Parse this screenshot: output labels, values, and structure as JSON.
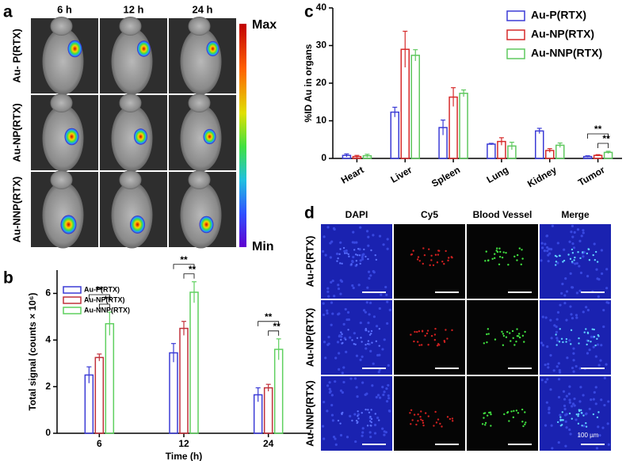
{
  "panel_a": {
    "label": "a",
    "columns": [
      "6 h",
      "12 h",
      "24 h"
    ],
    "rows": [
      "Au- P(RTX)",
      "Au-NP(RTX)",
      "Au-NNP(RTX)"
    ],
    "scale_max": "Max",
    "scale_min": "Min"
  },
  "panel_d": {
    "label": "d",
    "columns": [
      "DAPI",
      "Cy5",
      "Blood Vessel",
      "Merge"
    ],
    "rows": [
      "Au-P(RTX)",
      "Au-NP(RTX)",
      "Au-NNP(RTX)"
    ],
    "scale_bar": "100 µm"
  },
  "chart_data": [
    {
      "type": "bar",
      "panel": "b",
      "y_label": "Total signal (counts × 10⁶)",
      "x_label": "Time (h)",
      "categories": [
        "6",
        "12",
        "24"
      ],
      "series": [
        {
          "name": "Au-P(RTX)",
          "color": "#3b3bd6",
          "values": [
            2.5,
            3.45,
            1.65
          ],
          "errors": [
            0.35,
            0.4,
            0.3
          ]
        },
        {
          "name": "Au-NP(RTX)",
          "color": "#c0303a",
          "values": [
            3.25,
            4.5,
            1.95
          ],
          "errors": [
            0.15,
            0.3,
            0.15
          ]
        },
        {
          "name": "Au-NNP(RTX)",
          "color": "#5fd05f",
          "values": [
            4.7,
            6.05,
            3.6
          ],
          "errors": [
            0.5,
            0.45,
            0.45
          ]
        }
      ],
      "ylim": [
        0,
        7
      ],
      "yticks": [
        0,
        2,
        4,
        6
      ],
      "legend": "upper left",
      "annotations": [
        "**",
        "**",
        "**",
        "**",
        "**",
        "**"
      ]
    },
    {
      "type": "bar",
      "panel": "c",
      "y_label": "%ID Au in organs",
      "categories": [
        "Heart",
        "Liver",
        "Spleen",
        "Lung",
        "Kidney",
        "Tumor"
      ],
      "series": [
        {
          "name": "Au-P(RTX)",
          "color": "#3b3bd6",
          "values": [
            0.8,
            12.3,
            8.2,
            3.8,
            7.3,
            0.5
          ],
          "errors": [
            0.4,
            1.3,
            2.0,
            0.2,
            0.7,
            0.2
          ]
        },
        {
          "name": "Au-NP(RTX)",
          "color": "#d62a2a",
          "values": [
            0.5,
            29,
            16.3,
            4.5,
            2.1,
            0.8
          ],
          "errors": [
            0.3,
            4.8,
            2.5,
            1.0,
            0.5,
            0.2
          ]
        },
        {
          "name": "Au-NNP(RTX)",
          "color": "#5fc85f",
          "values": [
            0.7,
            27.4,
            17.3,
            3.3,
            3.5,
            1.6
          ],
          "errors": [
            0.4,
            1.5,
            0.9,
            1.0,
            0.6,
            0.3
          ]
        }
      ],
      "ylim": [
        0,
        40
      ],
      "yticks": [
        0,
        10,
        20,
        30,
        40
      ],
      "legend": "upper right",
      "annotations": [
        "**",
        "**"
      ]
    }
  ]
}
